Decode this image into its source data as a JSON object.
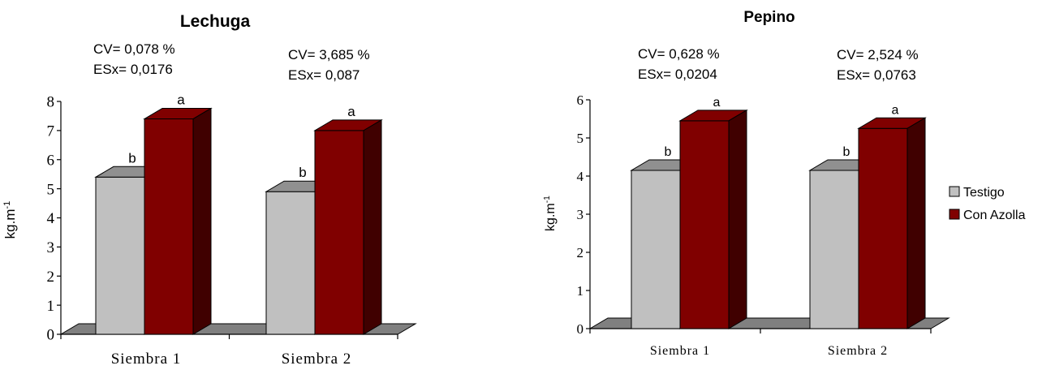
{
  "chart_data": [
    {
      "type": "bar",
      "title": "Lechuga",
      "ylabel": "kg.m-1",
      "ylabel_main": "kg.m",
      "ylabel_sup": "-1",
      "categories": [
        "Siembra 1",
        "Siembra 2"
      ],
      "ylim": [
        0,
        8
      ],
      "yticks": [
        "0",
        "1",
        "2",
        "3",
        "4",
        "5",
        "6",
        "7",
        "8"
      ],
      "series": [
        {
          "name": "Testigo",
          "values": [
            5.4,
            4.9
          ],
          "labels": [
            "b",
            "b"
          ],
          "color": "#c0c0c0",
          "top": "#909090",
          "side": "#808080"
        },
        {
          "name": "Con Azolla",
          "values": [
            7.4,
            7.0
          ],
          "labels": [
            "a",
            "a"
          ],
          "color": "#800000",
          "top": "#800000",
          "side": "#400000"
        }
      ],
      "annotations": [
        {
          "cv": "CV= 0,078 %",
          "esx": "ESx= 0,0176"
        },
        {
          "cv": "CV= 3,685 %",
          "esx": "ESx= 0,087"
        }
      ]
    },
    {
      "type": "bar",
      "title": "Pepino",
      "ylabel": "kg.m-1",
      "ylabel_main": "kg.m",
      "ylabel_sup": "-1",
      "categories": [
        "Siembra 1",
        "Siembra 2"
      ],
      "ylim": [
        0,
        6
      ],
      "yticks": [
        "0",
        "1",
        "2",
        "3",
        "4",
        "5",
        "6"
      ],
      "series": [
        {
          "name": "Testigo",
          "values": [
            4.15,
            4.15
          ],
          "labels": [
            "b",
            "b"
          ],
          "color": "#c0c0c0",
          "top": "#909090",
          "side": "#808080"
        },
        {
          "name": "Con Azolla",
          "values": [
            5.45,
            5.25
          ],
          "labels": [
            "a",
            "a"
          ],
          "color": "#800000",
          "top": "#800000",
          "side": "#400000"
        }
      ],
      "annotations": [
        {
          "cv": "CV= 0,628 %",
          "esx": "ESx= 0,0204"
        },
        {
          "cv": "CV= 2,524 %",
          "esx": "ESx= 0,0763"
        }
      ],
      "legend": [
        "Testigo",
        "Con Azolla"
      ],
      "legend_position": "right"
    }
  ]
}
